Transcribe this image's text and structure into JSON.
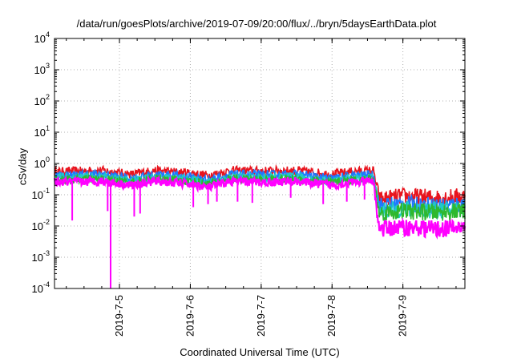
{
  "chart_data": {
    "type": "line",
    "title": "/data/run/goesPlots/archive/2019-07-09/20:00/flux/../bryn/5daysEarthData.plot",
    "xlabel": "Coordinated Universal Time (UTC)",
    "ylabel": "cSv/day",
    "yscale": "log",
    "ylim": [
      0.0001,
      10000
    ],
    "yticks": [
      {
        "value": 0.0001,
        "base": "10",
        "exp": "-4"
      },
      {
        "value": 0.001,
        "base": "10",
        "exp": "-3"
      },
      {
        "value": 0.01,
        "base": "10",
        "exp": "-2"
      },
      {
        "value": 0.1,
        "base": "10",
        "exp": "-1"
      },
      {
        "value": 1,
        "base": "10",
        "exp": "0"
      },
      {
        "value": 10,
        "base": "10",
        "exp": "1"
      },
      {
        "value": 100,
        "base": "10",
        "exp": "2"
      },
      {
        "value": 1000,
        "base": "10",
        "exp": "3"
      },
      {
        "value": 10000,
        "base": "10",
        "exp": "4"
      }
    ],
    "xlim": [
      "2019-07-04 02:00",
      "2019-07-09 21:00"
    ],
    "xticks": [
      {
        "value": "2019-07-05",
        "label": "2019-7-5"
      },
      {
        "value": "2019-07-06",
        "label": "2019-7-6"
      },
      {
        "value": "2019-07-07",
        "label": "2019-7-7"
      },
      {
        "value": "2019-07-08",
        "label": "2019-7-8"
      },
      {
        "value": "2019-07-09",
        "label": "2019-7-9"
      }
    ],
    "grid": true,
    "step_time": "2019-07-08 15:00",
    "series": [
      {
        "color": "#e8141e",
        "x": [
          "2019-07-04 02:00",
          "2019-07-04 18:00",
          "2019-07-05 04:00",
          "2019-07-05 12:00",
          "2019-07-06 00:00",
          "2019-07-06 06:00",
          "2019-07-06 14:00",
          "2019-07-07 00:00",
          "2019-07-07 12:00",
          "2019-07-08 00:00",
          "2019-07-08 06:00",
          "2019-07-08 14:00",
          "2019-07-08 16:00",
          "2019-07-09 00:00",
          "2019-07-09 12:00",
          "2019-07-09 21:00"
        ],
        "y": [
          0.55,
          0.6,
          0.45,
          0.6,
          0.5,
          0.42,
          0.6,
          0.58,
          0.6,
          0.45,
          0.55,
          0.6,
          0.07,
          0.09,
          0.08,
          0.09
        ]
      },
      {
        "color": "#1e78ff",
        "x": [
          "2019-07-04 02:00",
          "2019-07-04 18:00",
          "2019-07-05 04:00",
          "2019-07-05 12:00",
          "2019-07-06 00:00",
          "2019-07-06 06:00",
          "2019-07-06 14:00",
          "2019-07-07 00:00",
          "2019-07-07 12:00",
          "2019-07-08 00:00",
          "2019-07-08 06:00",
          "2019-07-08 14:00",
          "2019-07-08 16:00",
          "2019-07-09 00:00",
          "2019-07-09 12:00",
          "2019-07-09 21:00"
        ],
        "y": [
          0.42,
          0.45,
          0.33,
          0.45,
          0.38,
          0.3,
          0.45,
          0.43,
          0.45,
          0.33,
          0.4,
          0.45,
          0.045,
          0.05,
          0.045,
          0.05
        ]
      },
      {
        "color": "#20c9c9",
        "x": [
          "2019-07-04 02:00",
          "2019-07-04 18:00",
          "2019-07-05 04:00",
          "2019-07-05 12:00",
          "2019-07-06 00:00",
          "2019-07-06 06:00",
          "2019-07-06 14:00",
          "2019-07-07 00:00",
          "2019-07-07 12:00",
          "2019-07-08 00:00",
          "2019-07-08 06:00",
          "2019-07-08 14:00",
          "2019-07-08 16:00",
          "2019-07-09 00:00",
          "2019-07-09 12:00",
          "2019-07-09 21:00"
        ],
        "y": [
          0.35,
          0.37,
          0.27,
          0.37,
          0.31,
          0.25,
          0.37,
          0.35,
          0.37,
          0.27,
          0.33,
          0.37,
          0.03,
          0.035,
          0.032,
          0.035
        ]
      },
      {
        "color": "#2eb82e",
        "x": [
          "2019-07-04 02:00",
          "2019-07-04 18:00",
          "2019-07-05 04:00",
          "2019-07-05 12:00",
          "2019-07-06 00:00",
          "2019-07-06 06:00",
          "2019-07-06 14:00",
          "2019-07-07 00:00",
          "2019-07-07 12:00",
          "2019-07-08 00:00",
          "2019-07-08 06:00",
          "2019-07-08 14:00",
          "2019-07-08 16:00",
          "2019-07-09 00:00",
          "2019-07-09 12:00",
          "2019-07-09 21:00"
        ],
        "y": [
          0.3,
          0.32,
          0.24,
          0.32,
          0.27,
          0.22,
          0.32,
          0.3,
          0.32,
          0.24,
          0.29,
          0.32,
          0.025,
          0.03,
          0.027,
          0.03
        ]
      },
      {
        "color": "#ff00ff",
        "x": [
          "2019-07-04 02:00",
          "2019-07-04 18:00",
          "2019-07-05 04:00",
          "2019-07-05 12:00",
          "2019-07-06 00:00",
          "2019-07-06 06:00",
          "2019-07-06 14:00",
          "2019-07-07 00:00",
          "2019-07-07 12:00",
          "2019-07-08 00:00",
          "2019-07-08 06:00",
          "2019-07-08 14:00",
          "2019-07-08 16:00",
          "2019-07-09 00:00",
          "2019-07-09 12:00",
          "2019-07-09 21:00"
        ],
        "y": [
          0.25,
          0.27,
          0.2,
          0.27,
          0.22,
          0.17,
          0.27,
          0.25,
          0.27,
          0.2,
          0.24,
          0.27,
          0.008,
          0.009,
          0.008,
          0.009
        ]
      }
    ],
    "dropouts": [
      {
        "x": "2019-07-04 08:00",
        "y": 0.015
      },
      {
        "x": "2019-07-04 20:00",
        "y": 0.03
      },
      {
        "x": "2019-07-04 21:00",
        "y": 0.0001
      },
      {
        "x": "2019-07-05 05:00",
        "y": 0.02
      },
      {
        "x": "2019-07-05 07:00",
        "y": 0.025
      },
      {
        "x": "2019-07-06 01:00",
        "y": 0.04
      },
      {
        "x": "2019-07-06 06:00",
        "y": 0.05
      },
      {
        "x": "2019-07-06 09:00",
        "y": 0.06
      },
      {
        "x": "2019-07-06 16:00",
        "y": 0.06
      },
      {
        "x": "2019-07-06 21:00",
        "y": 0.055
      },
      {
        "x": "2019-07-07 10:00",
        "y": 0.08
      },
      {
        "x": "2019-07-07 21:00",
        "y": 0.05
      },
      {
        "x": "2019-07-08 05:00",
        "y": 0.06
      },
      {
        "x": "2019-07-08 11:00",
        "y": 0.07
      }
    ]
  }
}
